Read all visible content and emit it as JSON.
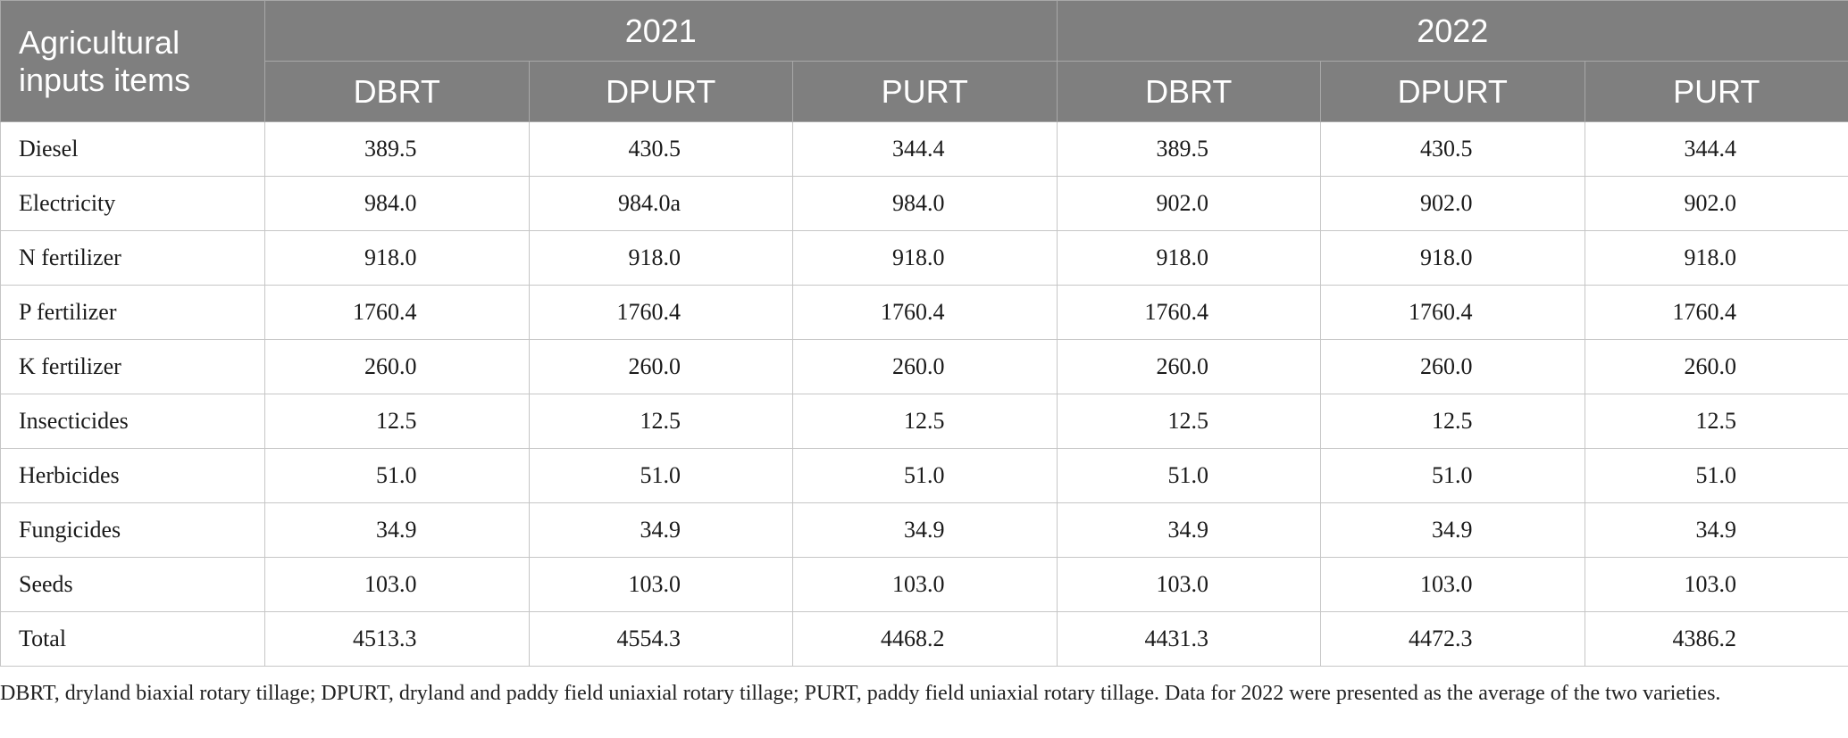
{
  "table": {
    "corner_header": "Agricultural inputs items",
    "year_headers": [
      "2021",
      "2022"
    ],
    "sub_headers": [
      "DBRT",
      "DPURT",
      "PURT",
      "DBRT",
      "DPURT",
      "PURT"
    ],
    "rows": [
      {
        "item": "Diesel",
        "values": [
          "389.5",
          "430.5",
          "344.4",
          "389.5",
          "430.5",
          "344.4"
        ]
      },
      {
        "item": "Electricity",
        "values": [
          "984.0",
          "984.0a",
          "984.0",
          "902.0",
          "902.0",
          "902.0"
        ]
      },
      {
        "item": "N fertilizer",
        "values": [
          "918.0",
          "918.0",
          "918.0",
          "918.0",
          "918.0",
          "918.0"
        ]
      },
      {
        "item": "P fertilizer",
        "values": [
          "1760.4",
          "1760.4",
          "1760.4",
          "1760.4",
          "1760.4",
          "1760.4"
        ]
      },
      {
        "item": "K fertilizer",
        "values": [
          "260.0",
          "260.0",
          "260.0",
          "260.0",
          "260.0",
          "260.0"
        ]
      },
      {
        "item": "Insecticides",
        "values": [
          "12.5",
          "12.5",
          "12.5",
          "12.5",
          "12.5",
          "12.5"
        ]
      },
      {
        "item": "Herbicides",
        "values": [
          "51.0",
          "51.0",
          "51.0",
          "51.0",
          "51.0",
          "51.0"
        ]
      },
      {
        "item": "Fungicides",
        "values": [
          "34.9",
          "34.9",
          "34.9",
          "34.9",
          "34.9",
          "34.9"
        ]
      },
      {
        "item": "Seeds",
        "values": [
          "103.0",
          "103.0",
          "103.0",
          "103.0",
          "103.0",
          "103.0"
        ]
      },
      {
        "item": "Total",
        "values": [
          "4513.3",
          "4554.3",
          "4468.2",
          "4431.3",
          "4472.3",
          "4386.2"
        ]
      }
    ]
  },
  "footnote": "DBRT, dryland biaxial rotary tillage; DPURT, dryland and paddy field uniaxial rotary tillage; PURT, paddy field uniaxial rotary tillage. Data for 2022 were presented as the average of the two varieties.",
  "colors": {
    "header_bg": "#7f7f7f",
    "header_text": "#ffffff",
    "grid_line": "#c6c6c6"
  }
}
